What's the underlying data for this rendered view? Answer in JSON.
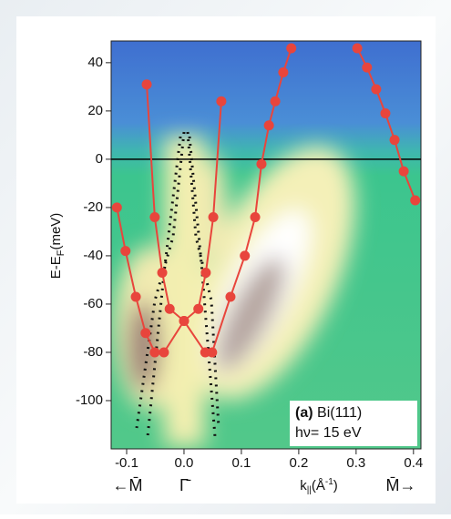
{
  "chart_data": {
    "type": "line",
    "ylabel_parts": [
      "E-E",
      "F",
      "(meV)"
    ],
    "xlabel_parts": [
      "k",
      "||",
      "(Å",
      "-1",
      ")"
    ],
    "annotation": {
      "bold": "(a)",
      "sample": "Bi(111)",
      "energy": "hν= 15 eV"
    },
    "direction_labels": [
      "←M̄",
      "Γ̄",
      "M̄→"
    ],
    "xlim": [
      -0.127,
      0.413
    ],
    "ylim": [
      -120,
      49
    ],
    "xticks": [
      -0.1,
      {
        "value": 0,
        "label": "0.0"
      },
      0.1,
      0.2,
      0.3,
      0.4
    ],
    "yticks": [
      40,
      20,
      0,
      -20,
      -40,
      -60,
      -80,
      -100
    ],
    "hline": 0,
    "hline_color": "#000000",
    "series": [
      {
        "color": "#e8453c",
        "x": [
          -0.117,
          -0.102,
          -0.084,
          -0.067,
          -0.051,
          -0.035,
          0,
          0.037,
          0.049,
          0.081,
          0.106,
          0.124,
          0.135,
          0.148,
          0.159,
          0.173,
          0.187
        ],
        "values": [
          -20,
          -38,
          -57,
          -72,
          -80,
          -80,
          -67,
          -80,
          -80,
          -57,
          -40,
          -24,
          -2,
          14,
          24,
          36,
          46
        ]
      },
      {
        "color": "#e8453c",
        "x": [
          -0.065,
          -0.051,
          -0.038,
          -0.025,
          0,
          0.025,
          0.038,
          0.051,
          0.065
        ],
        "values": [
          31,
          -24,
          -47,
          -62,
          -67,
          -62,
          -47,
          -24,
          24
        ]
      },
      {
        "color": "#e8453c",
        "x": [
          0.302,
          0.319,
          0.335,
          0.351,
          0.367,
          0.383,
          0.403
        ],
        "values": [
          46,
          38,
          29,
          19,
          8,
          -5,
          -17
        ]
      }
    ]
  }
}
